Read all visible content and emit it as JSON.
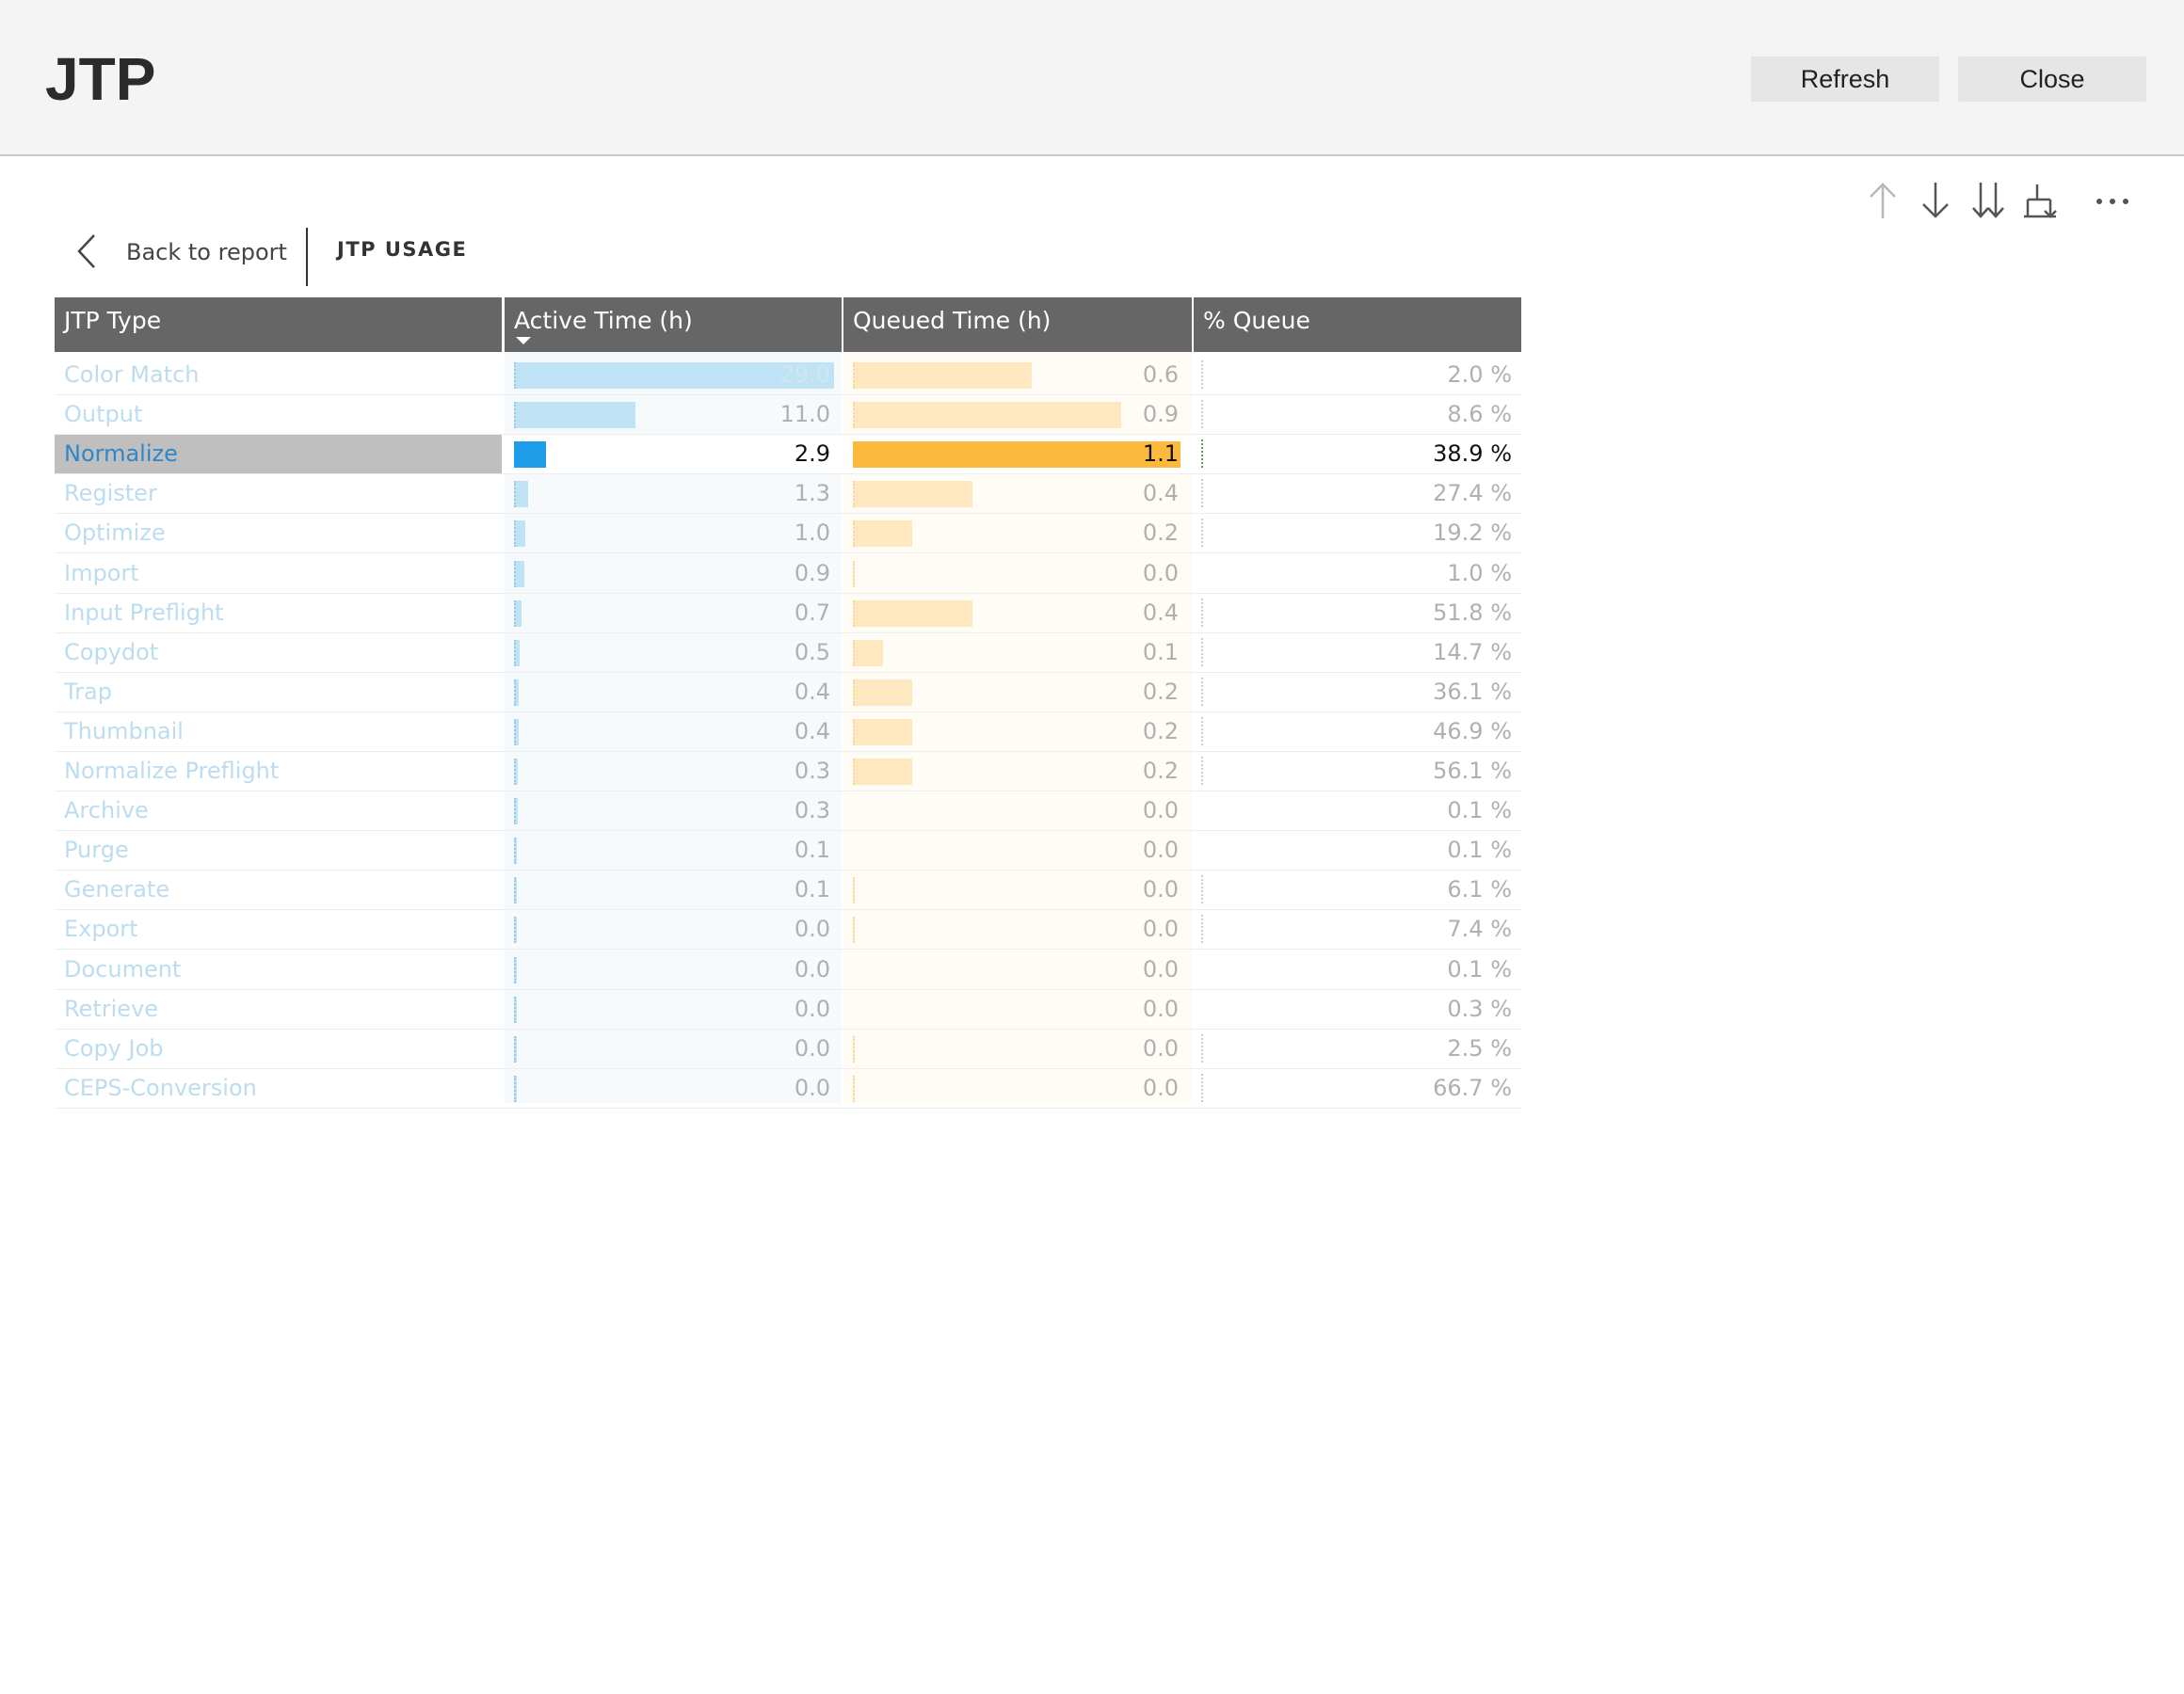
{
  "header": {
    "title": "JTP",
    "refresh_label": "Refresh",
    "close_label": "Close"
  },
  "toolbar": {
    "icons": [
      "arrow-up-icon",
      "arrow-down-icon",
      "double-arrow-down-icon",
      "expand-hierarchy-icon",
      "more-options-icon"
    ]
  },
  "nav": {
    "back_label": "Back to report",
    "report_title": "JTP USAGE"
  },
  "colors": {
    "active_bar": "#bfe2f5",
    "active_bar_selected": "#1e9ee8",
    "queued_bar": "#ffe8bf",
    "queued_bar_selected": "#fdb93b",
    "header_bg": "#666666",
    "selected_row_bg": "#bfbfbf"
  },
  "table": {
    "columns": [
      "JTP Type",
      "Active Time (h)",
      "Queued Time (h)",
      "% Queue"
    ],
    "sorted_column": "Active Time (h)",
    "sort_direction": "descending",
    "selected_row": "Normalize",
    "rows": [
      {
        "type": "Color Match",
        "active": "29.0",
        "queued": "0.6",
        "pct": "2.0 %"
      },
      {
        "type": "Output",
        "active": "11.0",
        "queued": "0.9",
        "pct": "8.6 %"
      },
      {
        "type": "Normalize",
        "active": "2.9",
        "queued": "1.1",
        "pct": "38.9 %"
      },
      {
        "type": "Register",
        "active": "1.3",
        "queued": "0.4",
        "pct": "27.4 %"
      },
      {
        "type": "Optimize",
        "active": "1.0",
        "queued": "0.2",
        "pct": "19.2 %"
      },
      {
        "type": "Import",
        "active": "0.9",
        "queued": "0.0",
        "pct": "1.0 %"
      },
      {
        "type": "Input Preflight",
        "active": "0.7",
        "queued": "0.4",
        "pct": "51.8 %"
      },
      {
        "type": "Copydot",
        "active": "0.5",
        "queued": "0.1",
        "pct": "14.7 %"
      },
      {
        "type": "Trap",
        "active": "0.4",
        "queued": "0.2",
        "pct": "36.1 %"
      },
      {
        "type": "Thumbnail",
        "active": "0.4",
        "queued": "0.2",
        "pct": "46.9 %"
      },
      {
        "type": "Normalize Preflight",
        "active": "0.3",
        "queued": "0.2",
        "pct": "56.1 %"
      },
      {
        "type": "Archive",
        "active": "0.3",
        "queued": "0.0",
        "pct": "0.1 %"
      },
      {
        "type": "Purge",
        "active": "0.1",
        "queued": "0.0",
        "pct": "0.1 %"
      },
      {
        "type": "Generate",
        "active": "0.1",
        "queued": "0.0",
        "pct": "6.1 %"
      },
      {
        "type": "Export",
        "active": "0.0",
        "queued": "0.0",
        "pct": "7.4 %"
      },
      {
        "type": "Document",
        "active": "0.0",
        "queued": "0.0",
        "pct": "0.1 %"
      },
      {
        "type": "Retrieve",
        "active": "0.0",
        "queued": "0.0",
        "pct": "0.3 %"
      },
      {
        "type": "Copy Job",
        "active": "0.0",
        "queued": "0.0",
        "pct": "2.5 %"
      },
      {
        "type": "CEPS-Conversion",
        "active": "0.0",
        "queued": "0.0",
        "pct": "66.7 %"
      }
    ]
  }
}
